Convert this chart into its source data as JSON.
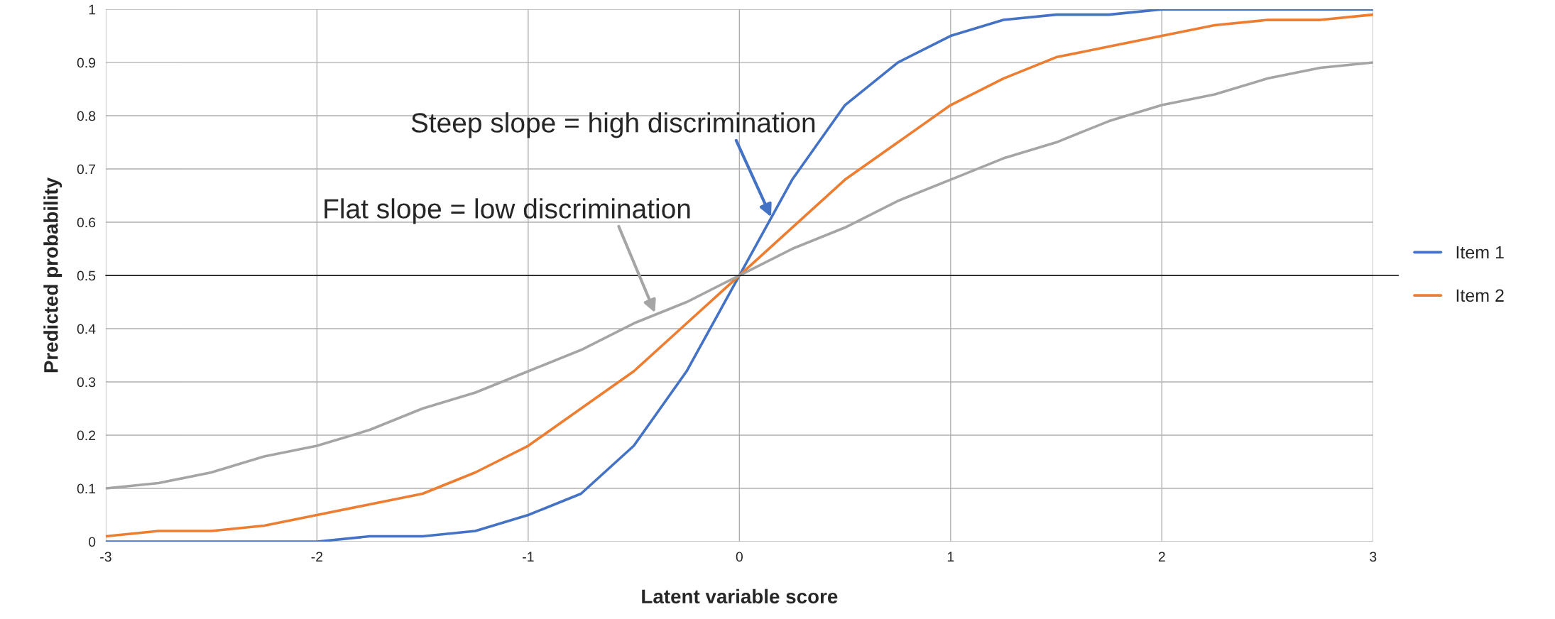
{
  "chart_data": {
    "type": "line",
    "xlabel": "Latent variable score",
    "ylabel": "Predicted probability",
    "x": [
      -3,
      -2.75,
      -2.5,
      -2.25,
      -2,
      -1.75,
      -1.5,
      -1.25,
      -1,
      -0.75,
      -0.5,
      -0.25,
      0,
      0.25,
      0.5,
      0.75,
      1,
      1.25,
      1.5,
      1.75,
      2,
      2.25,
      2.5,
      2.75,
      3
    ],
    "series": [
      {
        "name": "Item 1",
        "color": "#4472c4",
        "values": [
          0.0,
          0.0,
          0.0,
          0.0,
          0.0,
          0.01,
          0.01,
          0.02,
          0.05,
          0.09,
          0.18,
          0.32,
          0.5,
          0.68,
          0.82,
          0.9,
          0.95,
          0.98,
          0.99,
          0.99,
          1.0,
          1.0,
          1.0,
          1.0,
          1.0
        ]
      },
      {
        "name": "Item 2",
        "color": "#ed7d31",
        "values": [
          0.01,
          0.02,
          0.02,
          0.03,
          0.05,
          0.07,
          0.09,
          0.13,
          0.18,
          0.25,
          0.32,
          0.41,
          0.5,
          0.59,
          0.68,
          0.75,
          0.82,
          0.87,
          0.91,
          0.93,
          0.95,
          0.97,
          0.98,
          0.98,
          0.99
        ]
      },
      {
        "color": "#a5a5a5",
        "values": [
          0.1,
          0.11,
          0.13,
          0.16,
          0.18,
          0.21,
          0.25,
          0.28,
          0.32,
          0.36,
          0.41,
          0.45,
          0.5,
          0.55,
          0.59,
          0.64,
          0.68,
          0.72,
          0.75,
          0.79,
          0.82,
          0.84,
          0.87,
          0.89,
          0.9
        ]
      }
    ],
    "xlim": [
      -3,
      3
    ],
    "xticks": [
      -3,
      -2,
      -1,
      0,
      1,
      2,
      3
    ],
    "ylim": [
      0,
      1
    ],
    "yticks": [
      0,
      0.1,
      0.2,
      0.3,
      0.4,
      0.5,
      0.6,
      0.7,
      0.8,
      0.9,
      1
    ],
    "ref_lines": [
      {
        "axis": "y",
        "value": 0.5,
        "color": "#000000"
      }
    ],
    "annotations": [
      {
        "text": "Steep slope = high discrimination",
        "x": 0.15,
        "y": 0.61
      },
      {
        "text": "Flat slope = low discrimination",
        "x": -0.4,
        "y": 0.43
      }
    ],
    "grid": true,
    "legend": "right",
    "marker": "none",
    "line_style": "solid"
  }
}
